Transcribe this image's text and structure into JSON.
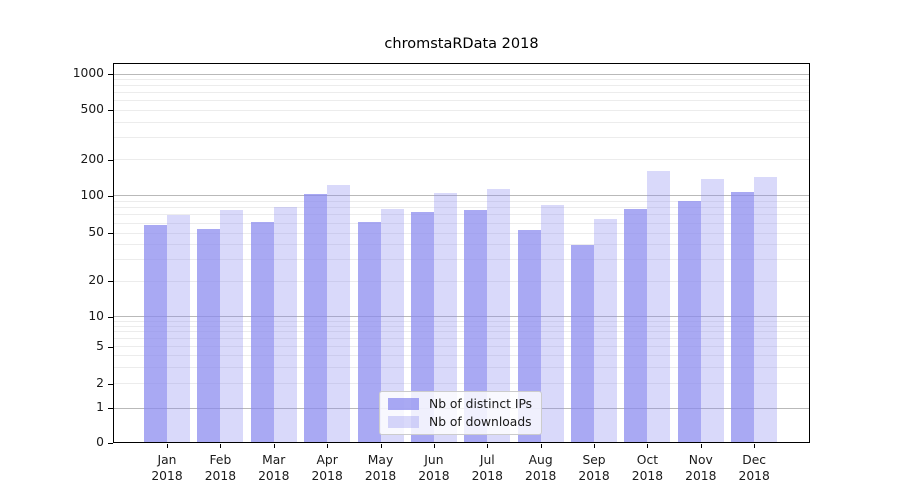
{
  "chart_data": {
    "type": "bar",
    "title": "chromstaRData 2018",
    "categories": [
      "Jan",
      "Feb",
      "Mar",
      "Apr",
      "May",
      "Jun",
      "Jul",
      "Aug",
      "Sep",
      "Oct",
      "Nov",
      "Dec"
    ],
    "x_tick_year_line": "2018",
    "series": [
      {
        "name": "Nb of distinct IPs",
        "color": "rgba(136,136,238,0.72)",
        "values": [
          58,
          54,
          61,
          102,
          61,
          74,
          77,
          53,
          40,
          78,
          91,
          108
        ]
      },
      {
        "name": "Nb of downloads",
        "color": "rgba(136,136,238,0.32)",
        "values": [
          70,
          77,
          81,
          122,
          78,
          105,
          113,
          84,
          65,
          160,
          138,
          142
        ]
      }
    ],
    "y_axis": {
      "scale": "log",
      "tick_values": [
        0,
        1,
        2,
        5,
        10,
        20,
        50,
        100,
        200,
        500,
        1000
      ],
      "tick_labels": [
        "0",
        "1",
        "2",
        "5",
        "10",
        "20",
        "50",
        "100",
        "200",
        "500",
        "1000"
      ],
      "major_gridline_values": [
        1,
        10,
        100,
        1000
      ],
      "labeled_minor_values": [
        2,
        5,
        20,
        50,
        200,
        500
      ],
      "unlabeled_minor_values": [
        3,
        4,
        6,
        7,
        8,
        9,
        30,
        40,
        60,
        70,
        80,
        90,
        300,
        400,
        600,
        700,
        800,
        900
      ],
      "range_top": 1400
    },
    "grid": true,
    "legend": {
      "position": "lower center"
    },
    "colors": {
      "bar_base": "#8888ee",
      "major_grid": "#b9b9b9",
      "minor_grid": "#ececec",
      "axis": "#000000",
      "text": "#1a1a1a",
      "legend_border": "#cccccc"
    }
  }
}
